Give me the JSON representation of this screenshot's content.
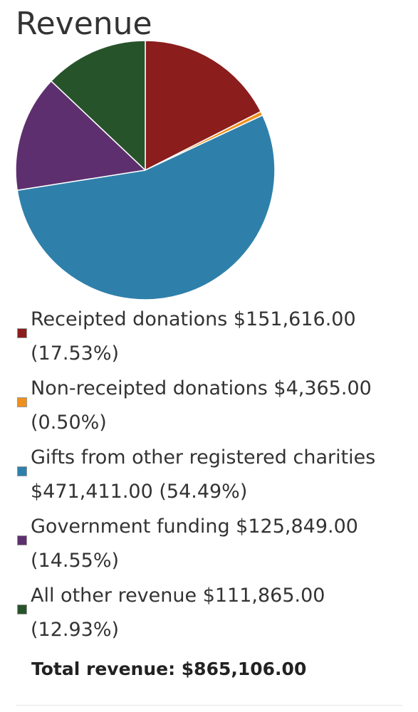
{
  "header": {
    "title": "Revenue"
  },
  "chart_data": {
    "type": "pie",
    "title": "Revenue",
    "categories": [
      "Receipted donations",
      "Non-receipted donations",
      "Gifts from other registered charities",
      "Government funding",
      "All other revenue"
    ],
    "values": [
      151616.0,
      4365.0,
      471411.0,
      125849.0,
      111865.0
    ],
    "percentages": [
      17.53,
      0.5,
      54.49,
      14.55,
      12.93
    ],
    "colors": [
      "#8b1d1d",
      "#f0901c",
      "#2e80aa",
      "#5e2f6e",
      "#27532b"
    ],
    "legend_position": "bottom"
  },
  "legend": {
    "items": [
      {
        "line1": "Receipted donations $151,616.00",
        "line2": "(17.53%)",
        "color": "#8b1d1d"
      },
      {
        "line1": "Non-receipted donations $4,365.00",
        "line2": "(0.50%)",
        "color": "#f0901c"
      },
      {
        "line1": "Gifts from other registered charities",
        "line2": "$471,411.00 (54.49%)",
        "color": "#2e80aa"
      },
      {
        "line1": "Government funding $125,849.00",
        "line2": "(14.55%)",
        "color": "#5e2f6e"
      },
      {
        "line1": "All other revenue $111,865.00",
        "line2": "(12.93%)",
        "color": "#27532b"
      }
    ]
  },
  "summary": {
    "total": "Total revenue: $865,106.00"
  }
}
